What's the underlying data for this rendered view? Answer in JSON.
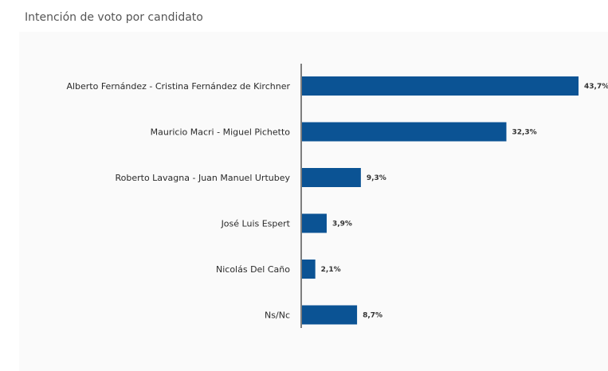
{
  "caption": "Intención de voto por candidato",
  "chart_data": {
    "type": "bar",
    "orientation": "horizontal",
    "categories": [
      "Alberto Fernández - Cristina Fernández de Kirchner",
      "Mauricio Macri - Miguel Pichetto",
      "Roberto Lavagna - Juan Manuel Urtubey",
      "José Luis Espert",
      "Nicolás Del Caño",
      "Ns/Nc"
    ],
    "values": [
      43.7,
      32.3,
      9.3,
      3.9,
      2.1,
      8.7
    ],
    "value_labels": [
      "43,7%",
      "32,3%",
      "9,3%",
      "3,9%",
      "2,1%",
      "8,7%"
    ],
    "title": "",
    "xlabel": "",
    "ylabel": "",
    "xlim": [
      0,
      44
    ],
    "grid": false,
    "legend": "none",
    "colors": {
      "bar": "#0b5394",
      "axis": "#555555"
    }
  }
}
